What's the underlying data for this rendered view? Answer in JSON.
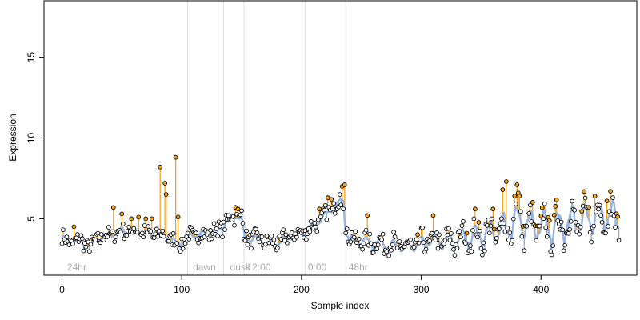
{
  "chart_data": {
    "type": "scatter",
    "xlabel": "Sample index",
    "ylabel": "Expression",
    "xlim": [
      -15,
      480
    ],
    "ylim": [
      1.5,
      18.5
    ],
    "x_ticks": [
      0,
      100,
      200,
      300,
      400
    ],
    "y_ticks": [
      5,
      10,
      15
    ],
    "segment_boundaries": [
      105,
      135,
      152,
      203,
      237
    ],
    "segment_labels": [
      {
        "label": "24hr",
        "x": 3
      },
      {
        "label": "dawn",
        "x": 108
      },
      {
        "label": "dusk",
        "x": 139
      },
      {
        "label": "12:00",
        "x": 153
      },
      {
        "label": "0:00",
        "x": 204
      },
      {
        "label": "48hr",
        "x": 238
      }
    ],
    "series": [
      {
        "name": "",
        "kind": "observed points",
        "color": "#000000",
        "fill": "#ffffff",
        "highlight_fill": "#f5a623",
        "values": []
      },
      {
        "name": "",
        "kind": "fitted trend",
        "color": "#9ab5dc"
      },
      {
        "name": "",
        "kind": "residual stems",
        "colors": {
          "up": "#f39c12",
          "down": "#7ba7d9"
        }
      }
    ],
    "anchors": [
      [
        0,
        3.9
      ],
      [
        5,
        3.5
      ],
      [
        10,
        3.6
      ],
      [
        15,
        3.7
      ],
      [
        20,
        3.4
      ],
      [
        25,
        3.3
      ],
      [
        30,
        3.8
      ],
      [
        35,
        3.9
      ],
      [
        40,
        4.0
      ],
      [
        45,
        4.1
      ],
      [
        50,
        4.3
      ],
      [
        55,
        4.2
      ],
      [
        60,
        4.3
      ],
      [
        65,
        4.2
      ],
      [
        70,
        4.1
      ],
      [
        75,
        4.0
      ],
      [
        80,
        4.0
      ],
      [
        85,
        4.0
      ],
      [
        90,
        3.8
      ],
      [
        95,
        3.5
      ],
      [
        100,
        3.5
      ],
      [
        105,
        3.9
      ],
      [
        110,
        4.0
      ],
      [
        115,
        4.0
      ],
      [
        120,
        4.1
      ],
      [
        125,
        4.1
      ],
      [
        130,
        4.3
      ],
      [
        135,
        4.6
      ],
      [
        140,
        5.0
      ],
      [
        145,
        5.2
      ],
      [
        150,
        5.0
      ],
      [
        152,
        4.0
      ],
      [
        155,
        3.8
      ],
      [
        160,
        3.8
      ],
      [
        165,
        3.7
      ],
      [
        170,
        3.6
      ],
      [
        175,
        3.5
      ],
      [
        180,
        3.5
      ],
      [
        185,
        3.7
      ],
      [
        190,
        3.9
      ],
      [
        195,
        4.0
      ],
      [
        200,
        4.1
      ],
      [
        205,
        4.3
      ],
      [
        210,
        4.5
      ],
      [
        215,
        4.9
      ],
      [
        220,
        5.2
      ],
      [
        225,
        5.6
      ],
      [
        230,
        5.9
      ],
      [
        235,
        6.2
      ],
      [
        237,
        4.2
      ],
      [
        240,
        3.8
      ],
      [
        245,
        3.7
      ],
      [
        250,
        3.6
      ],
      [
        255,
        3.6
      ],
      [
        260,
        3.5
      ],
      [
        265,
        3.5
      ],
      [
        270,
        3.4
      ],
      [
        275,
        3.4
      ],
      [
        280,
        3.3
      ],
      [
        285,
        3.3
      ],
      [
        290,
        3.3
      ],
      [
        295,
        3.4
      ],
      [
        300,
        3.5
      ],
      [
        305,
        3.6
      ],
      [
        310,
        3.7
      ],
      [
        315,
        3.6
      ],
      [
        320,
        3.6
      ],
      [
        325,
        3.6
      ],
      [
        330,
        3.7
      ],
      [
        335,
        3.8
      ],
      [
        340,
        3.9
      ],
      [
        345,
        4.0
      ],
      [
        350,
        4.0
      ],
      [
        355,
        4.1
      ],
      [
        360,
        4.2
      ],
      [
        365,
        4.3
      ],
      [
        370,
        4.5
      ],
      [
        375,
        4.7
      ],
      [
        380,
        4.9
      ],
      [
        385,
        4.8
      ],
      [
        390,
        4.6
      ],
      [
        395,
        4.6
      ],
      [
        400,
        4.6
      ],
      [
        405,
        4.5
      ],
      [
        410,
        4.5
      ],
      [
        415,
        4.6
      ],
      [
        420,
        4.7
      ],
      [
        425,
        4.8
      ],
      [
        430,
        4.9
      ],
      [
        435,
        4.9
      ],
      [
        440,
        5.0
      ],
      [
        445,
        5.1
      ],
      [
        450,
        5.2
      ],
      [
        455,
        5.3
      ],
      [
        460,
        5.2
      ],
      [
        465,
        5.0
      ]
    ],
    "amplitude_profile": [
      [
        0,
        0.15
      ],
      [
        240,
        0.2
      ],
      [
        300,
        0.35
      ],
      [
        340,
        0.5
      ],
      [
        370,
        0.8
      ],
      [
        420,
        0.9
      ],
      [
        465,
        0.8
      ]
    ],
    "point_count": 466,
    "outliers": [
      [
        10,
        4.5
      ],
      [
        43,
        5.7
      ],
      [
        50,
        5.3
      ],
      [
        58,
        5.0
      ],
      [
        64,
        5.1
      ],
      [
        70,
        5.0
      ],
      [
        75,
        5.0
      ],
      [
        82,
        8.2
      ],
      [
        86,
        7.2
      ],
      [
        87,
        6.5
      ],
      [
        95,
        8.8
      ],
      [
        97,
        5.1
      ],
      [
        145,
        5.7
      ],
      [
        147,
        5.6
      ],
      [
        150,
        5.5
      ],
      [
        215,
        5.6
      ],
      [
        222,
        6.3
      ],
      [
        225,
        6.2
      ],
      [
        232,
        6.5
      ],
      [
        234,
        7.0
      ],
      [
        236,
        7.1
      ],
      [
        255,
        5.2
      ],
      [
        310,
        5.2
      ],
      [
        345,
        5.6
      ],
      [
        360,
        5.6
      ],
      [
        368,
        6.8
      ],
      [
        371,
        7.3
      ],
      [
        378,
        6.4
      ],
      [
        380,
        7.1
      ],
      [
        381,
        6.6
      ],
      [
        382,
        6.4
      ],
      [
        440,
        5.7
      ],
      [
        445,
        6.4
      ],
      [
        455,
        6.1
      ],
      [
        458,
        6.7
      ],
      [
        460,
        6.3
      ]
    ]
  }
}
